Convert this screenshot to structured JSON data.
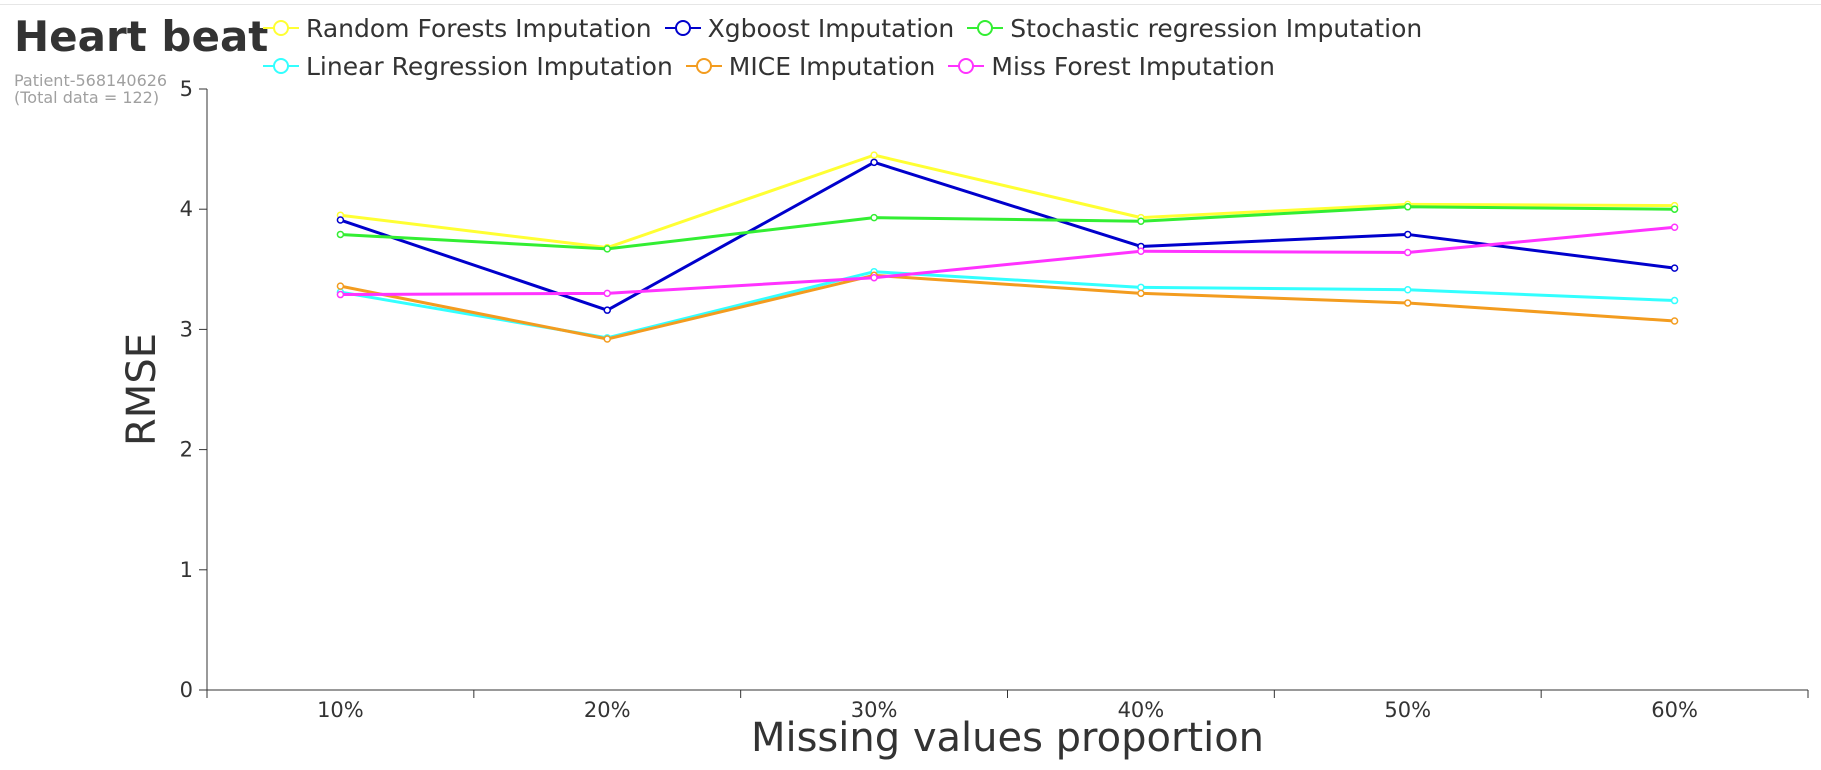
{
  "header": {
    "title": "Heart beat",
    "subtitle_line1": "Patient-568140626",
    "subtitle_line2": "(Total data = 122)"
  },
  "chart_data": {
    "type": "line",
    "title": "Heart beat",
    "xlabel": "Missing values proportion",
    "ylabel": "RMSE",
    "categories": [
      "10%",
      "20%",
      "30%",
      "40%",
      "50%",
      "60%"
    ],
    "ylim": [
      0,
      5
    ],
    "yticks": [
      "0",
      "1",
      "2",
      "3",
      "4",
      "5"
    ],
    "grid": false,
    "legend_position": "top",
    "series": [
      {
        "name": "Random Forests Imputation",
        "color": "#ffff33",
        "values": [
          3.95,
          3.68,
          4.45,
          3.93,
          4.04,
          4.03
        ]
      },
      {
        "name": "Xgboost Imputation",
        "color": "#0000cc",
        "values": [
          3.91,
          3.16,
          4.39,
          3.69,
          3.79,
          3.51
        ]
      },
      {
        "name": "Stochastic regression Imputation",
        "color": "#33ee33",
        "values": [
          3.79,
          3.67,
          3.93,
          3.9,
          4.02,
          4.0
        ]
      },
      {
        "name": "Linear Regression Imputation",
        "color": "#33ffff",
        "values": [
          3.31,
          2.93,
          3.48,
          3.35,
          3.33,
          3.24
        ]
      },
      {
        "name": "MICE Imputation",
        "color": "#f39c1f",
        "values": [
          3.36,
          2.92,
          3.45,
          3.3,
          3.22,
          3.07
        ]
      },
      {
        "name": "Miss Forest Imputation",
        "color": "#ff33ff",
        "values": [
          3.29,
          3.3,
          3.43,
          3.65,
          3.64,
          3.85
        ]
      }
    ]
  }
}
